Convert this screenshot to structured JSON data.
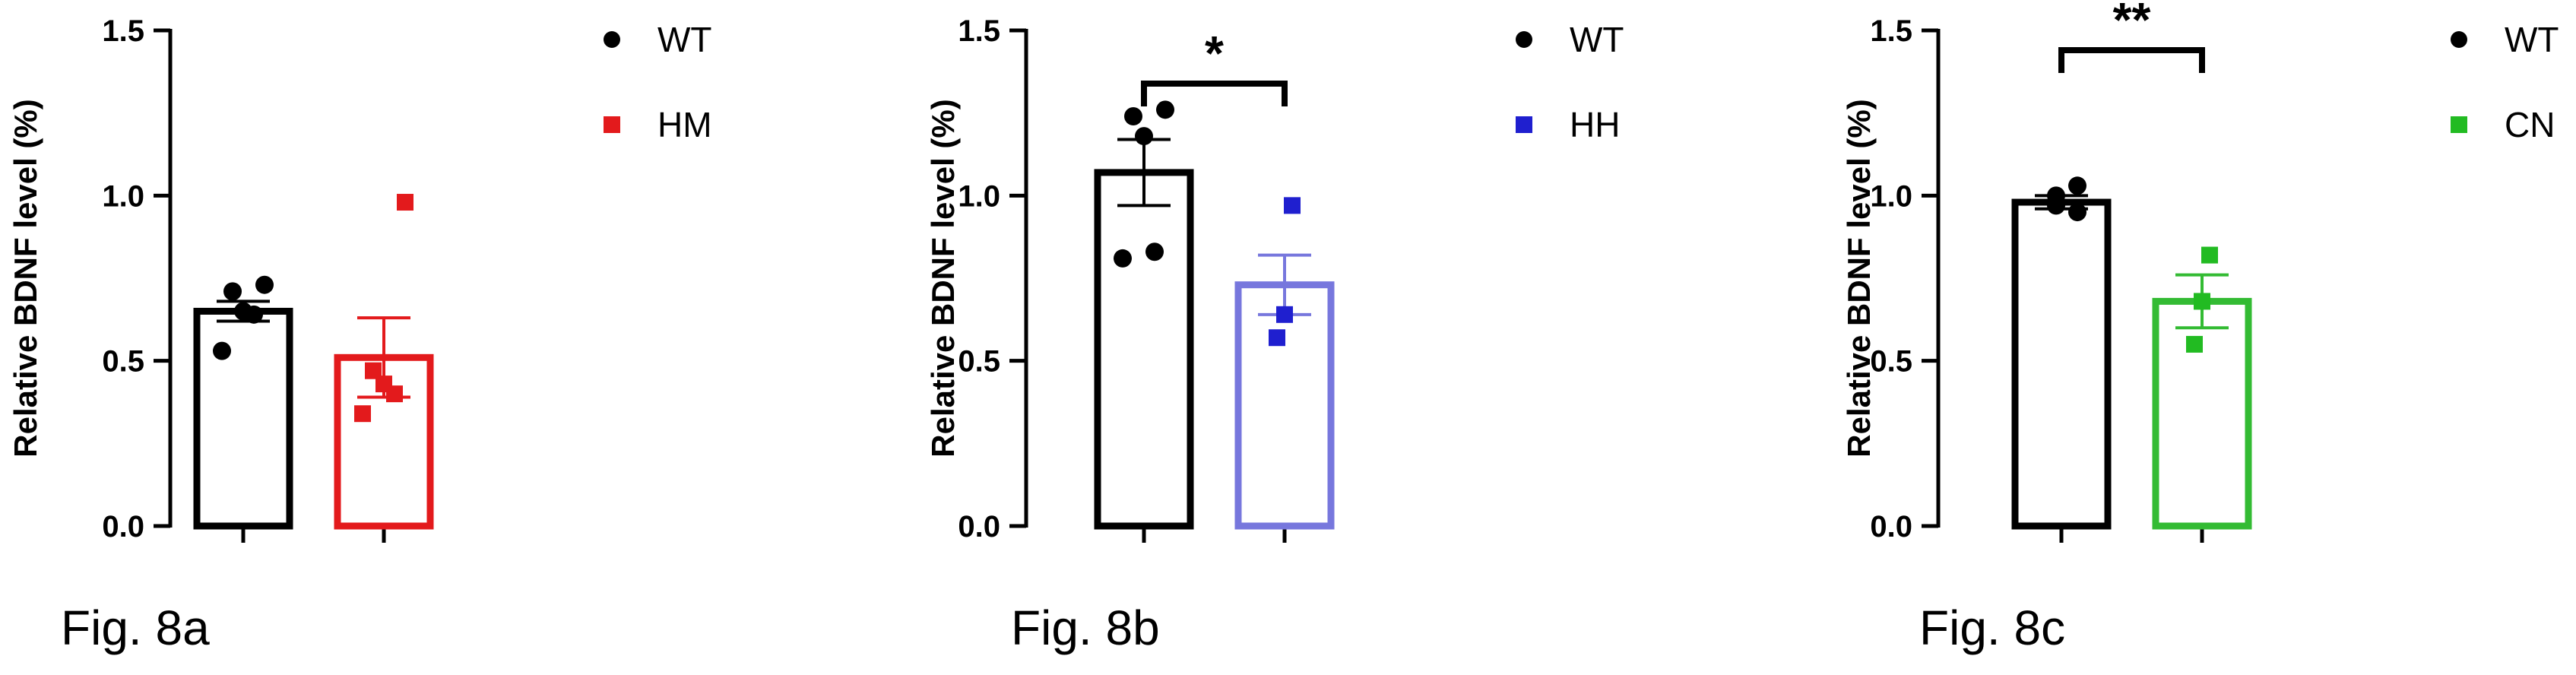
{
  "chart_data": [
    {
      "type": "bar",
      "figure_label": "Fig. 8a",
      "ylabel": "Relative BDNF level (%)",
      "ylim": [
        0,
        1.5
      ],
      "yticks": [
        "0.0",
        "0.5",
        "1.0",
        "1.5"
      ],
      "categories": [
        "WT",
        "HM"
      ],
      "significance": "",
      "series": [
        {
          "name": "WT",
          "color": "#000000",
          "marker": "circle",
          "mean": 0.65,
          "sem": 0.03,
          "points": [
            0.73,
            0.71,
            0.65,
            0.64,
            0.53
          ]
        },
        {
          "name": "HM",
          "color": "#e31a1c",
          "marker": "square",
          "mean": 0.51,
          "sem": 0.12,
          "points": [
            0.98,
            0.47,
            0.43,
            0.4,
            0.34
          ]
        }
      ]
    },
    {
      "type": "bar",
      "figure_label": "Fig. 8b",
      "ylabel": "Relative BDNF level (%)",
      "ylim": [
        0,
        1.5
      ],
      "yticks": [
        "0.0",
        "0.5",
        "1.0",
        "1.5"
      ],
      "categories": [
        "WT",
        "HH"
      ],
      "significance": "*",
      "series": [
        {
          "name": "WT",
          "color": "#000000",
          "marker": "circle",
          "mean": 1.07,
          "sem": 0.1,
          "points": [
            1.26,
            1.24,
            1.18,
            0.83,
            0.81
          ]
        },
        {
          "name": "HH",
          "color": "#1f1fcf",
          "bar_color": "#7777dd",
          "marker": "square",
          "mean": 0.73,
          "sem": 0.09,
          "points": [
            0.97,
            0.64,
            0.57
          ]
        }
      ]
    },
    {
      "type": "bar",
      "figure_label": "Fig. 8c",
      "ylabel": "Relative BDNF level (%)",
      "ylim": [
        0,
        1.5
      ],
      "yticks": [
        "0.0",
        "0.5",
        "1.0",
        "1.5"
      ],
      "categories": [
        "WT",
        "CN"
      ],
      "significance": "**",
      "series": [
        {
          "name": "WT",
          "color": "#000000",
          "marker": "circle",
          "mean": 0.98,
          "sem": 0.02,
          "points": [
            1.03,
            1.0,
            0.97,
            0.95
          ]
        },
        {
          "name": "CN",
          "color": "#22bb22",
          "bar_color": "#33bb33",
          "marker": "square",
          "mean": 0.68,
          "sem": 0.08,
          "points": [
            0.82,
            0.68,
            0.55
          ]
        }
      ]
    }
  ]
}
